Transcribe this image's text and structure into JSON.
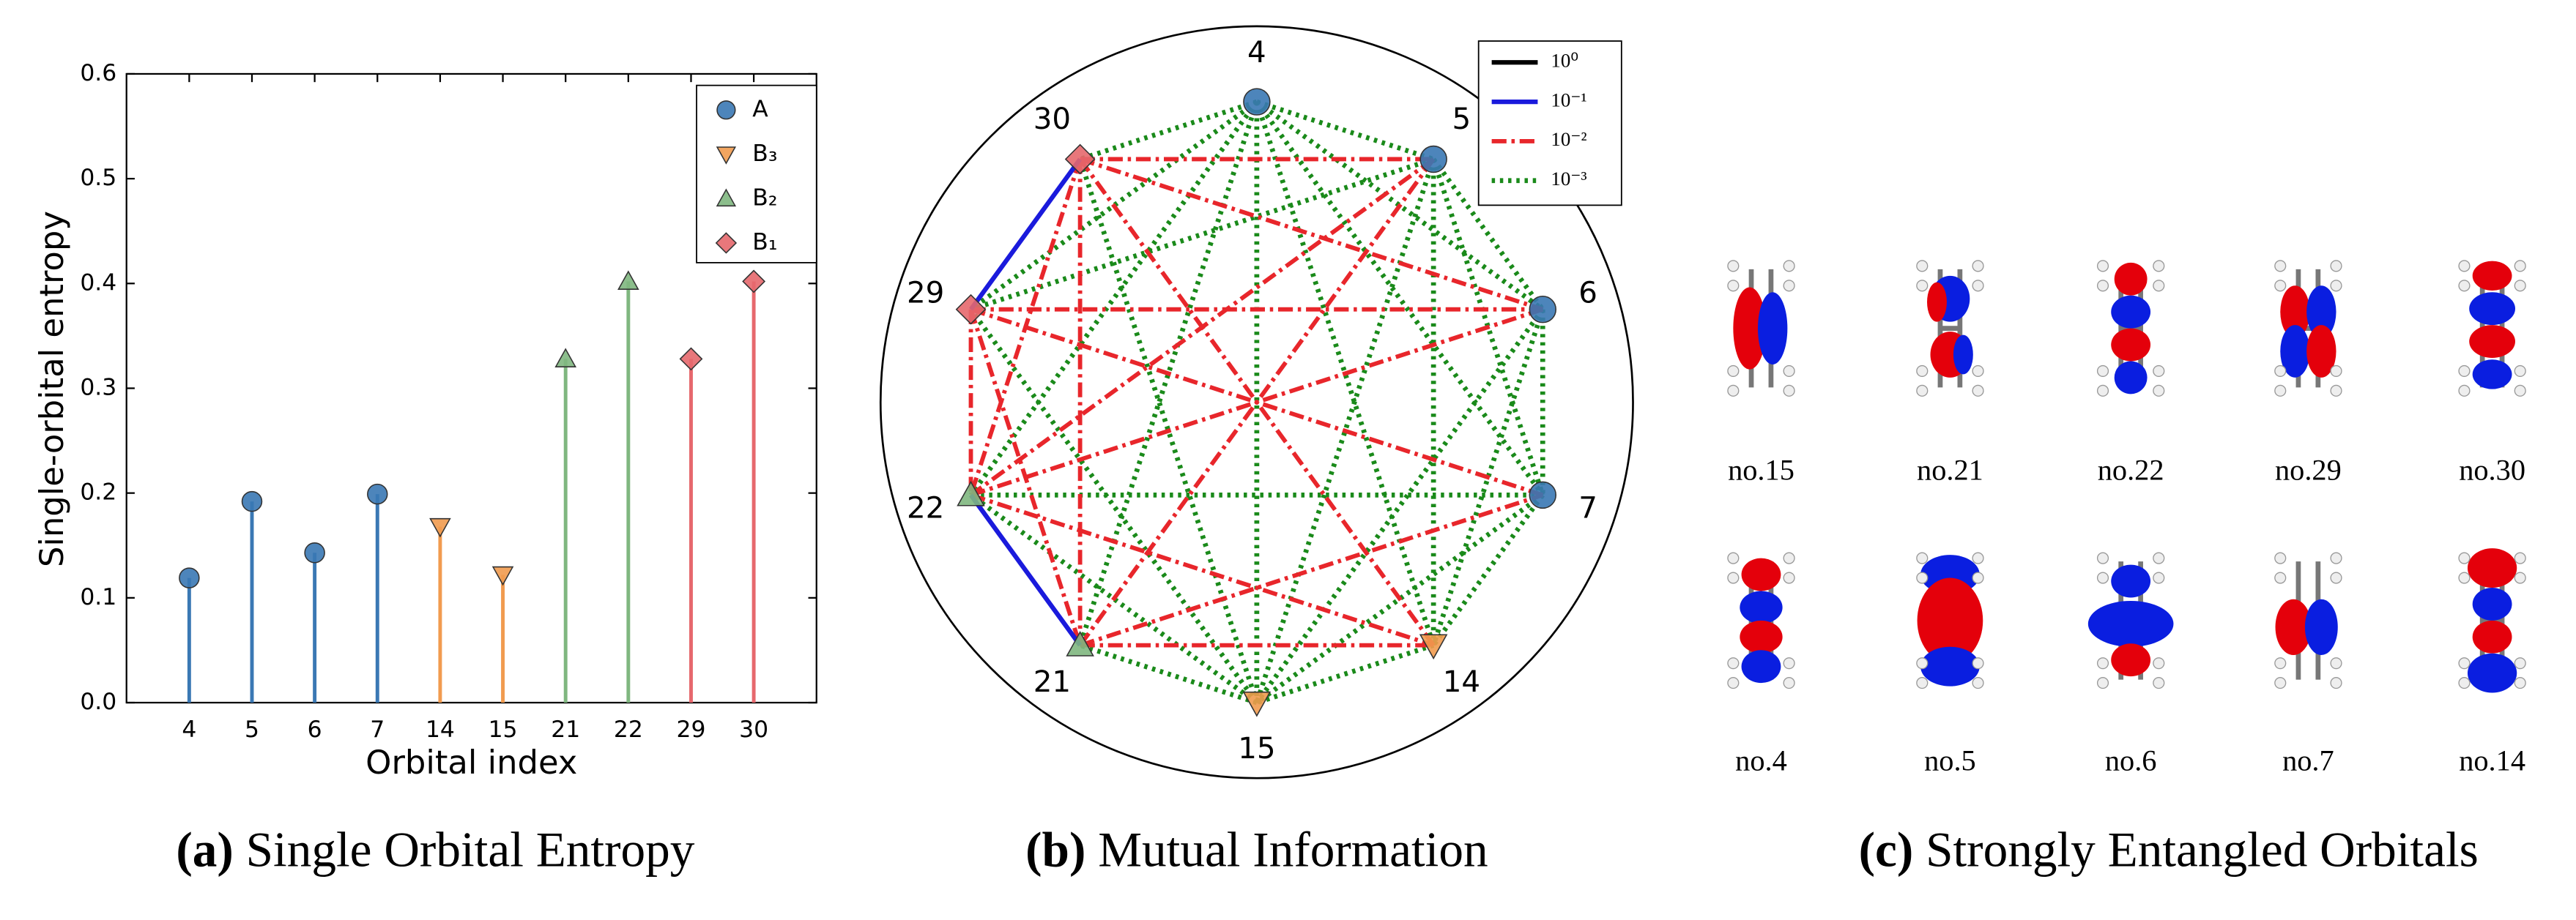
{
  "chart_data": [
    {
      "type": "stem",
      "caption_label": "(a)",
      "caption": "Single Orbital Entropy",
      "xlabel": "Orbital index",
      "ylabel": "Single-orbital entropy",
      "categories": [
        "4",
        "5",
        "6",
        "7",
        "14",
        "15",
        "21",
        "22",
        "29",
        "30"
      ],
      "series": [
        {
          "name": "A",
          "color": "#3a78b4",
          "marker": "o",
          "values": [
            0.119,
            0.192,
            0.143,
            0.199,
            null,
            null,
            null,
            null,
            null,
            null
          ]
        },
        {
          "name": "B₃",
          "color": "#f19b4f",
          "marker": "v",
          "values": [
            null,
            null,
            null,
            null,
            0.168,
            0.122,
            null,
            null,
            null,
            null
          ]
        },
        {
          "name": "B₂",
          "color": "#80b780",
          "marker": "^",
          "values": [
            null,
            null,
            null,
            null,
            null,
            null,
            0.328,
            0.402,
            null,
            null
          ]
        },
        {
          "name": "B₁",
          "color": "#e6686d",
          "marker": "D",
          "values": [
            null,
            null,
            null,
            null,
            null,
            null,
            null,
            null,
            0.328,
            0.402
          ]
        }
      ],
      "ylim": [
        0,
        0.6
      ],
      "yticks": [
        {
          "value": 0,
          "label": "0.0"
        },
        0.1,
        0.2,
        0.3,
        0.4,
        0.5,
        0.6
      ],
      "legend": "upper right"
    },
    {
      "type": "network",
      "caption_label": "(b)",
      "caption": "Mutual Information",
      "nodes": [
        {
          "label": "4",
          "series": "A"
        },
        {
          "label": "5",
          "series": "A"
        },
        {
          "label": "6",
          "series": "A"
        },
        {
          "label": "7",
          "series": "A"
        },
        {
          "label": "14",
          "series": "B₃"
        },
        {
          "label": "15",
          "series": "B₃"
        },
        {
          "label": "21",
          "series": "B₂"
        },
        {
          "label": "22",
          "series": "B₂"
        },
        {
          "label": "29",
          "series": "B₁"
        },
        {
          "label": "30",
          "series": "B₁"
        }
      ],
      "levels": [
        {
          "value": 1,
          "label": "10⁰",
          "color": "#000000",
          "style": "solid"
        },
        {
          "value": 0.1,
          "label": "10⁻¹",
          "color": "#1a1adc",
          "style": "solid"
        },
        {
          "value": 0.01,
          "label": "10⁻²",
          "color": "#e8262b",
          "style": "dashdot"
        },
        {
          "value": 0.001,
          "label": "10⁻³",
          "color": "#1a8a1a",
          "style": "dotted"
        }
      ],
      "links": [
        {
          "source": "4",
          "target": "5",
          "value": 0.001
        },
        {
          "source": "4",
          "target": "30",
          "value": 0.001
        },
        {
          "source": "4",
          "target": "29",
          "value": 0.001
        },
        {
          "source": "4",
          "target": "6",
          "value": 0.001
        },
        {
          "source": "4",
          "target": "7",
          "value": 0.001
        },
        {
          "source": "4",
          "target": "14",
          "value": 0.001
        },
        {
          "source": "4",
          "target": "21",
          "value": 0.001
        },
        {
          "source": "4",
          "target": "22",
          "value": 0.001
        },
        {
          "source": "4",
          "target": "15",
          "value": 0.001
        },
        {
          "source": "5",
          "target": "6",
          "value": 0.001
        },
        {
          "source": "5",
          "target": "7",
          "value": 0.001
        },
        {
          "source": "5",
          "target": "14",
          "value": 0.001
        },
        {
          "source": "5",
          "target": "15",
          "value": 0.001
        },
        {
          "source": "5",
          "target": "29",
          "value": 0.001
        },
        {
          "source": "6",
          "target": "7",
          "value": 0.001
        },
        {
          "source": "6",
          "target": "14",
          "value": 0.001
        },
        {
          "source": "6",
          "target": "15",
          "value": 0.001
        },
        {
          "source": "7",
          "target": "14",
          "value": 0.001
        },
        {
          "source": "7",
          "target": "15",
          "value": 0.001
        },
        {
          "source": "7",
          "target": "22",
          "value": 0.001
        },
        {
          "source": "14",
          "target": "15",
          "value": 0.001
        },
        {
          "source": "15",
          "target": "21",
          "value": 0.001
        },
        {
          "source": "15",
          "target": "22",
          "value": 0.001
        },
        {
          "source": "15",
          "target": "29",
          "value": 0.001
        },
        {
          "source": "15",
          "target": "30",
          "value": 0.001
        },
        {
          "source": "30",
          "target": "5",
          "value": 0.01
        },
        {
          "source": "30",
          "target": "6",
          "value": 0.01
        },
        {
          "source": "30",
          "target": "22",
          "value": 0.01
        },
        {
          "source": "30",
          "target": "21",
          "value": 0.01
        },
        {
          "source": "30",
          "target": "14",
          "value": 0.01
        },
        {
          "source": "29",
          "target": "6",
          "value": 0.01
        },
        {
          "source": "29",
          "target": "7",
          "value": 0.01
        },
        {
          "source": "29",
          "target": "22",
          "value": 0.01
        },
        {
          "source": "29",
          "target": "21",
          "value": 0.01
        },
        {
          "source": "5",
          "target": "21",
          "value": 0.01
        },
        {
          "source": "5",
          "target": "22",
          "value": 0.01
        },
        {
          "source": "22",
          "target": "6",
          "value": 0.01
        },
        {
          "source": "22",
          "target": "14",
          "value": 0.01
        },
        {
          "source": "21",
          "target": "14",
          "value": 0.01
        },
        {
          "source": "21",
          "target": "7",
          "value": 0.01
        },
        {
          "source": "30",
          "target": "29",
          "value": 0.1
        },
        {
          "source": "22",
          "target": "21",
          "value": 0.1
        }
      ],
      "legend": "upper right"
    }
  ],
  "orbitals": {
    "caption_label": "(c)",
    "caption": "Strongly Entangled Orbitals",
    "rows": [
      [
        "no.15",
        "no.21",
        "no.22",
        "no.29",
        "no.30"
      ],
      [
        "no.4",
        "no.5",
        "no.6",
        "no.7",
        "no.14"
      ]
    ]
  }
}
